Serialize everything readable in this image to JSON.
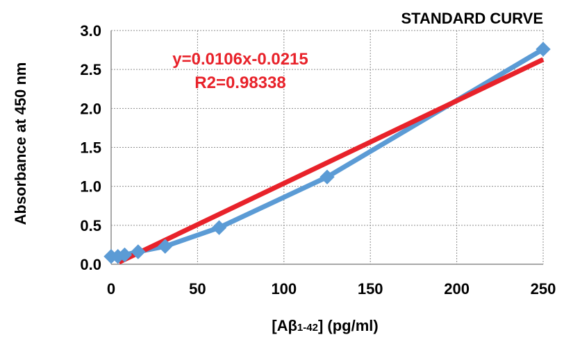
{
  "chart_data": {
    "type": "line",
    "title": "STANDARD CURVE",
    "xlabel": {
      "prefix": "[Aβ",
      "subscript": "1-42",
      "suffix": "] (pg/ml)"
    },
    "ylabel": "Absorbance at 450 nm",
    "xlim": [
      0,
      250
    ],
    "ylim": [
      0,
      3.0
    ],
    "x_ticks": [
      "0",
      "50",
      "100",
      "150",
      "200",
      "250"
    ],
    "y_ticks": [
      "0.0",
      "0.5",
      "1.0",
      "1.5",
      "2.0",
      "2.5",
      "3.0"
    ],
    "grid": true,
    "series": [
      {
        "role": "data",
        "color": "#5b9bd5",
        "marker": "diamond",
        "x": [
          0,
          3.9,
          7.8,
          15.6,
          31.25,
          62.5,
          125,
          250
        ],
        "y": [
          0.1,
          0.1,
          0.12,
          0.16,
          0.23,
          0.47,
          1.12,
          2.76
        ]
      },
      {
        "role": "trendline",
        "color": "#e8222a",
        "slope": 0.0106,
        "intercept": -0.0215,
        "x": [
          4.5,
          250
        ]
      }
    ],
    "annotations": {
      "equation": "y=0.0106x-0.0215",
      "r2": "R2=0.98338"
    }
  }
}
